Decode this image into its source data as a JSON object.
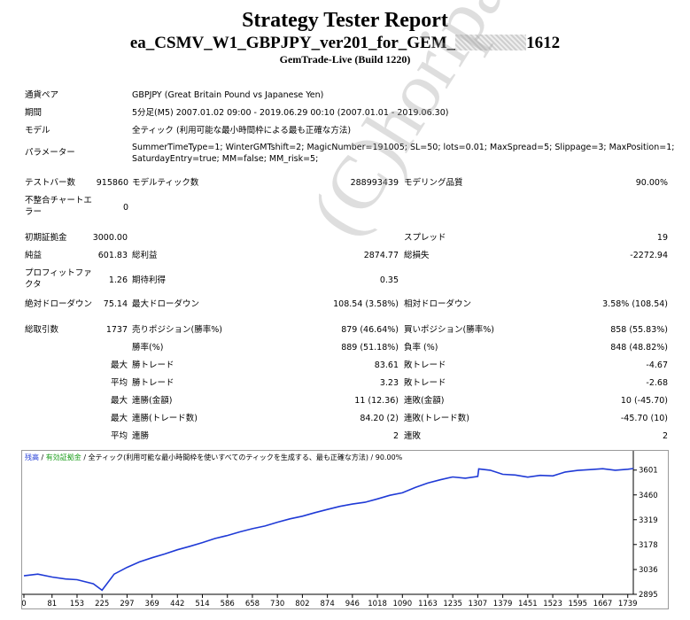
{
  "report": {
    "title": "Strategy Tester Report",
    "ea_prefix": "ea_CSMV_W1_GBPJPY_ver201_for_GEM_",
    "ea_suffix": "1612",
    "server": "GemTrade-Live (Build 1220)"
  },
  "info": {
    "symbol_label": "通貨ペア",
    "symbol_value": "GBPJPY (Great Britain Pound vs Japanese Yen)",
    "period_label": "期間",
    "period_value": "5分足(M5) 2007.01.02 09:00 - 2019.06.29 00:10 (2007.01.01 - 2019.06.30)",
    "model_label": "モデル",
    "model_value": "全ティック (利用可能な最小時間枠による最も正確な方法)",
    "params_label": "パラメーター",
    "params_value_1": "SummerTimeType=1; WinterGMTshift=2; MagicNumber=191005; SL=50; lots=0.01; MaxSpread=5; Slippage=3; MaxPosition=1;",
    "params_value_2": "SaturdayEntry=true; MM=false; MM_risk=5;"
  },
  "stats": {
    "bars_label": "テストバー数",
    "bars_value": "915860",
    "ticks_label": "モデルティック数",
    "ticks_value": "288993439",
    "quality_label": "モデリング品質",
    "quality_value": "90.00%",
    "mismatch_label": "不整合チャートエラー",
    "mismatch_value": "0",
    "deposit_label": "初期証拠金",
    "deposit_value": "3000.00",
    "spread_label": "スプレッド",
    "spread_value": "19",
    "net_label": "純益",
    "net_value": "601.83",
    "gross_profit_label": "総利益",
    "gross_profit_value": "2874.77",
    "gross_loss_label": "総損失",
    "gross_loss_value": "-2272.94",
    "pf_label": "プロフィットファクタ",
    "pf_value": "1.26",
    "expected_label": "期待利得",
    "expected_value": "0.35",
    "abs_dd_label": "絶対ドローダウン",
    "abs_dd_value": "75.14",
    "max_dd_label": "最大ドローダウン",
    "max_dd_value": "108.54 (3.58%)",
    "rel_dd_label": "相対ドローダウン",
    "rel_dd_value": "3.58% (108.54)",
    "trades_label": "総取引数",
    "trades_value": "1737",
    "short_label": "売りポジション(勝率%)",
    "short_value": "879 (46.64%)",
    "long_label": "買いポジション(勝率%)",
    "long_value": "858 (55.83%)",
    "win_label": "勝率(%)",
    "win_value": "889 (51.18%)",
    "loss_label": "負率 (%)",
    "loss_value": "848 (48.82%)",
    "max_word": "最大",
    "avg_word": "平均",
    "win_trade_label": "勝トレード",
    "max_win_value": "83.61",
    "avg_win_value": "3.23",
    "loss_trade_label": "敗トレード",
    "max_loss_value": "-4.67",
    "avg_loss_value": "-2.68",
    "cons_win_money_label": "連勝(金額)",
    "cons_win_money_value": "11 (12.36)",
    "cons_loss_money_label": "連敗(金額)",
    "cons_loss_money_value": "10 (-45.70)",
    "cons_win_count_label": "連勝(トレード数)",
    "cons_win_count_value": "84.20 (2)",
    "cons_loss_count_label": "連敗(トレード数)",
    "cons_loss_count_value": "-45.70 (10)",
    "avg_cons_win_label": "連勝",
    "avg_cons_win_value": "2",
    "avg_cons_loss_label": "連敗",
    "avg_cons_loss_value": "2"
  },
  "watermark": "(C)horipage",
  "chart_legend": {
    "balance": "残高",
    "sep1": " / ",
    "equity": "有効証拠金",
    "sep2": " / ",
    "model": "全ティック(利用可能な最小時間枠を使いすべてのティックを生成する、最も正確な方法)",
    "sep3": " / ",
    "quality": "90.00%"
  },
  "chart_data": {
    "type": "line",
    "series": [
      {
        "name": "残高",
        "color": "#1f3ad6",
        "x": [
          0,
          40,
          81,
          120,
          153,
          200,
          225,
          260,
          297,
          333,
          369,
          405,
          442,
          478,
          514,
          550,
          586,
          622,
          658,
          694,
          730,
          766,
          802,
          838,
          874,
          910,
          946,
          982,
          1018,
          1054,
          1090,
          1127,
          1163,
          1199,
          1235,
          1271,
          1307,
          1310,
          1343,
          1379,
          1415,
          1451,
          1487,
          1523,
          1559,
          1595,
          1631,
          1667,
          1703,
          1739,
          1755
        ],
        "y": [
          3000,
          3010,
          2993,
          2982,
          2978,
          2955,
          2918,
          3010,
          3048,
          3079,
          3103,
          3124,
          3148,
          3168,
          3189,
          3212,
          3229,
          3250,
          3268,
          3283,
          3305,
          3324,
          3339,
          3359,
          3377,
          3395,
          3408,
          3418,
          3437,
          3458,
          3472,
          3502,
          3527,
          3546,
          3562,
          3555,
          3565,
          3608,
          3600,
          3577,
          3573,
          3561,
          3571,
          3568,
          3590,
          3599,
          3604,
          3609,
          3600,
          3606,
          3610
        ]
      }
    ],
    "x_ticks": [
      0,
      81,
      153,
      225,
      297,
      369,
      442,
      514,
      586,
      658,
      730,
      802,
      874,
      946,
      1018,
      1090,
      1163,
      1235,
      1307,
      1379,
      1451,
      1523,
      1595,
      1667,
      1739
    ],
    "y_ticks": [
      2895,
      3036,
      3178,
      3319,
      3460,
      3601
    ],
    "xlim": [
      0,
      1755
    ],
    "ylim": [
      2895,
      3640
    ],
    "grid": false
  }
}
